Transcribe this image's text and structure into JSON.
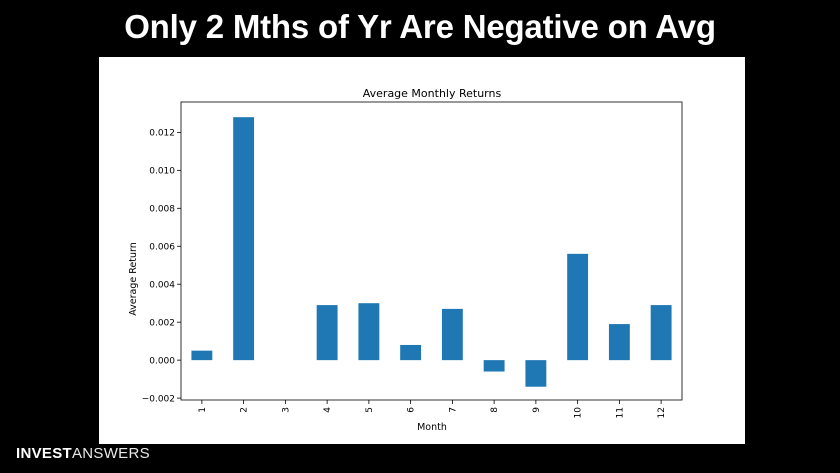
{
  "slide": {
    "headline": "Only 2 Mths of Yr Are Negative on Avg",
    "brand_bold": "INVEST",
    "brand_light": "ANSWERS"
  },
  "colors": {
    "bar": "#1f77b4",
    "background": "#000000",
    "figure": "#ffffff"
  },
  "chart_data": {
    "type": "bar",
    "title": "Average Monthly Returns",
    "xlabel": "Month",
    "ylabel": "Average Return",
    "categories": [
      "1",
      "2",
      "3",
      "4",
      "5",
      "6",
      "7",
      "8",
      "9",
      "10",
      "11",
      "12"
    ],
    "values": [
      0.0005,
      0.0128,
      0.0,
      0.0029,
      0.003,
      0.0008,
      0.0027,
      -0.0006,
      -0.0014,
      0.0056,
      0.0019,
      0.0029
    ],
    "yticks": [
      "-0.002",
      "0.000",
      "0.002",
      "0.004",
      "0.006",
      "0.008",
      "0.010",
      "0.012"
    ],
    "ylim": [
      -0.0021,
      0.0136
    ],
    "grid": false,
    "legend": "none"
  }
}
